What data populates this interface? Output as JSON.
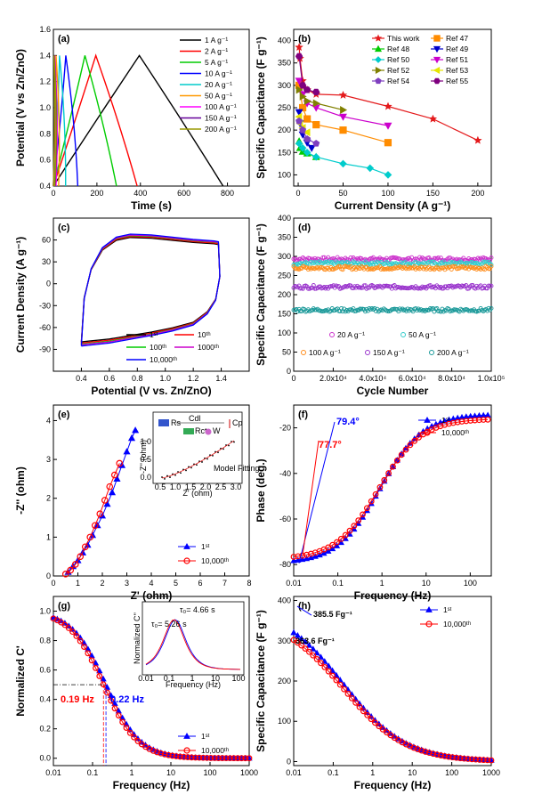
{
  "chart_data": [
    {
      "id": "a",
      "type": "line",
      "panel_label": "(a)",
      "xlabel": "Time (s)",
      "ylabel": "Potential (V vs Zn/ZnO)",
      "xlim": [
        0,
        900
      ],
      "ylim": [
        0.4,
        1.6
      ],
      "xticks": [
        "0",
        "200",
        "400",
        "600",
        "800"
      ],
      "yticks": [
        "0.4",
        "0.6",
        "0.8",
        "1.0",
        "1.2",
        "1.4",
        "1.6"
      ],
      "legend_position": "top-right",
      "series": [
        {
          "name": "1 A g⁻¹",
          "color": "#000000",
          "x": [
            0,
            395,
            780
          ],
          "y": [
            0.4,
            1.4,
            0.4
          ]
        },
        {
          "name": "2 A g⁻¹",
          "color": "#ff0000",
          "x": [
            0,
            195,
            385
          ],
          "y": [
            0.4,
            1.4,
            0.4
          ]
        },
        {
          "name": "5 A g⁻¹",
          "color": "#00cc00",
          "x": [
            0,
            145,
            290
          ],
          "y": [
            0.4,
            1.4,
            0.4
          ]
        },
        {
          "name": "10 A g⁻¹",
          "color": "#0000ff",
          "x": [
            0,
            57,
            112
          ],
          "y": [
            0.4,
            1.4,
            0.4
          ]
        },
        {
          "name": "20 A g⁻¹",
          "color": "#00cccc",
          "x": [
            0,
            28,
            56
          ],
          "y": [
            0.4,
            1.4,
            0.4
          ]
        },
        {
          "name": "50 A g⁻¹",
          "color": "#ff9900",
          "x": [
            0,
            12,
            24
          ],
          "y": [
            0.4,
            1.4,
            0.4
          ]
        },
        {
          "name": "100 A g⁻¹",
          "color": "#ff00ff",
          "x": [
            0,
            6,
            12
          ],
          "y": [
            0.4,
            1.4,
            0.4
          ]
        },
        {
          "name": "150 A g⁻¹",
          "color": "#660099",
          "x": [
            0,
            4,
            8
          ],
          "y": [
            0.4,
            1.4,
            0.4
          ]
        },
        {
          "name": "200 A g⁻¹",
          "color": "#999900",
          "x": [
            0,
            3,
            6
          ],
          "y": [
            0.4,
            1.4,
            0.4
          ]
        }
      ]
    },
    {
      "id": "b",
      "type": "line",
      "panel_label": "(b)",
      "xlabel": "Current Density (A g⁻¹)",
      "ylabel": "Specific Capacitance (F g⁻¹)",
      "xlim": [
        -5,
        215
      ],
      "ylim": [
        75,
        425
      ],
      "xticks": [
        "0",
        "50",
        "100",
        "150",
        "200"
      ],
      "yticks": [
        "100",
        "150",
        "200",
        "250",
        "300",
        "350",
        "400"
      ],
      "legend_position": "top-right",
      "series": [
        {
          "name": "This work",
          "color": "#e41a1c",
          "marker": "star",
          "x": [
            1,
            2,
            5,
            10,
            20,
            50,
            100,
            150,
            200
          ],
          "y": [
            385,
            360,
            310,
            290,
            280,
            278,
            253,
            225,
            177
          ]
        },
        {
          "name": "Ref 47",
          "color": "#ff8c00",
          "marker": "square",
          "x": [
            1,
            5,
            10,
            20,
            50,
            100
          ],
          "y": [
            300,
            250,
            225,
            212,
            200,
            172
          ]
        },
        {
          "name": "Ref 48",
          "color": "#00cc00",
          "marker": "triangle",
          "x": [
            1,
            2,
            5,
            10,
            20
          ],
          "y": [
            175,
            160,
            152,
            148,
            140
          ]
        },
        {
          "name": "Ref 49",
          "color": "#0000cc",
          "marker": "tri-down",
          "x": [
            1,
            2,
            5,
            10,
            15
          ],
          "y": [
            240,
            215,
            190,
            172,
            160
          ]
        },
        {
          "name": "Ref 50",
          "color": "#00cccc",
          "marker": "diamond",
          "x": [
            1,
            5,
            10,
            20,
            50,
            80,
            100
          ],
          "y": [
            170,
            160,
            150,
            140,
            125,
            115,
            100
          ]
        },
        {
          "name": "Ref 51",
          "color": "#cc00cc",
          "marker": "tri-down",
          "x": [
            1,
            5,
            10,
            20,
            50,
            100
          ],
          "y": [
            310,
            280,
            260,
            250,
            230,
            210
          ]
        },
        {
          "name": "Ref 52",
          "color": "#808000",
          "marker": "tri-right",
          "x": [
            1,
            5,
            10,
            20,
            50
          ],
          "y": [
            290,
            275,
            265,
            260,
            245
          ]
        },
        {
          "name": "Ref 53",
          "color": "#e6e600",
          "marker": "tri-left",
          "x": [
            1,
            2,
            5,
            10
          ],
          "y": [
            230,
            215,
            205,
            195
          ]
        },
        {
          "name": "Ref 54",
          "color": "#7f3fbf",
          "marker": "pentagon",
          "x": [
            1,
            5,
            10,
            20
          ],
          "y": [
            220,
            200,
            180,
            170
          ]
        },
        {
          "name": "Ref 55",
          "color": "#7f007f",
          "marker": "hexagon",
          "x": [
            1,
            5,
            10,
            20
          ],
          "y": [
            365,
            300,
            290,
            285
          ]
        }
      ]
    },
    {
      "id": "c",
      "type": "line",
      "panel_label": "(c)",
      "xlabel": "Potential (V vs. Zn/ZnO)",
      "ylabel": "Current Density (A g⁻¹)",
      "xlim": [
        0.2,
        1.6
      ],
      "ylim": [
        -120,
        90
      ],
      "xticks": [
        "0.4",
        "0.6",
        "0.8",
        "1.0",
        "1.2",
        "1.4"
      ],
      "yticks": [
        "-90",
        "-60",
        "-30",
        "0",
        "30",
        "60"
      ],
      "legend_position": "bottom-right",
      "series": [
        {
          "name": "1ˢᵗ",
          "color": "#000000",
          "scale": 0.96
        },
        {
          "name": "10ᵗʰ",
          "color": "#ff0000",
          "scale": 0.98
        },
        {
          "name": "100ᵗʰ",
          "color": "#00cc00",
          "scale": 1.0
        },
        {
          "name": "1000ᵗʰ",
          "color": "#cc00cc",
          "scale": 1.01
        },
        {
          "name": "10,000ᵗʰ",
          "color": "#0000ff",
          "scale": 1.03
        }
      ]
    },
    {
      "id": "d",
      "type": "scatter",
      "panel_label": "(d)",
      "xlabel": "Cycle Number",
      "ylabel": "Specific Capacitance (F g⁻¹)",
      "xlim": [
        0,
        100000
      ],
      "ylim": [
        0,
        400
      ],
      "xticks": [
        "0",
        "2.0x10⁴",
        "4.0x10⁴",
        "6.0x10⁴",
        "8.0x10⁴",
        "1.0x10⁵"
      ],
      "yticks": [
        "0",
        "50",
        "100",
        "150",
        "200",
        "250",
        "300",
        "350",
        "400"
      ],
      "legend_position": "bottom",
      "series": [
        {
          "name": "20 A g⁻¹",
          "color": "#cc33cc",
          "y": 293
        },
        {
          "name": "50 A g⁻¹",
          "color": "#33cccc",
          "y": 282
        },
        {
          "name": "100 A g⁻¹",
          "color": "#ff8c1a",
          "y": 270
        },
        {
          "name": "150 A g⁻¹",
          "color": "#9933cc",
          "y": 220
        },
        {
          "name": "200 A g⁻¹",
          "color": "#1a9999",
          "y": 160
        }
      ]
    },
    {
      "id": "e",
      "type": "scatter",
      "panel_label": "(e)",
      "xlabel": "Z' (ohm)",
      "ylabel": "-Z'' (ohm)",
      "xlim": [
        0,
        8
      ],
      "ylim": [
        0,
        4.4
      ],
      "xticks": [
        "0",
        "1",
        "2",
        "3",
        "4",
        "5",
        "6",
        "7",
        "8"
      ],
      "yticks": [
        "0",
        "1",
        "2",
        "3",
        "4"
      ],
      "legend_position": "bottom-right",
      "series": [
        {
          "name": "1ˢᵗ",
          "color": "#0000ff",
          "marker": "triangle",
          "x": [
            0.6,
            0.8,
            1.0,
            1.2,
            1.4,
            1.6,
            1.8,
            2.0,
            2.2,
            2.4,
            2.6,
            2.8,
            3.0,
            3.2,
            3.35
          ],
          "y": [
            0.1,
            0.25,
            0.4,
            0.6,
            0.8,
            1.05,
            1.3,
            1.55,
            1.85,
            2.15,
            2.5,
            2.85,
            3.2,
            3.55,
            3.75
          ]
        },
        {
          "name": "10,000ᵗʰ",
          "color": "#ff0000",
          "marker": "circle",
          "x": [
            0.5,
            0.7,
            0.9,
            1.1,
            1.3,
            1.5,
            1.7,
            1.9,
            2.1,
            2.3,
            2.5,
            2.7
          ],
          "y": [
            0.05,
            0.15,
            0.3,
            0.5,
            0.75,
            1.0,
            1.3,
            1.6,
            1.95,
            2.3,
            2.6,
            2.9
          ]
        }
      ],
      "inset": {
        "xlabel": "Z' (ohm)",
        "ylabel": "-Z'' (ohm)",
        "xticks": [
          "0.5",
          "1.0",
          "1.5",
          "2.0",
          "2.5",
          "3.0"
        ],
        "yticks": [
          "0.0",
          "0.5",
          "1.0"
        ],
        "circuit": [
          "Rs",
          "Cdl",
          "Rct",
          "W",
          "Cp"
        ],
        "legend": "Model Fitting"
      }
    },
    {
      "id": "f",
      "type": "scatter",
      "panel_label": "(f)",
      "xlabel": "Frequency (Hz)",
      "ylabel": "Phase (deg.)",
      "xscale": "log",
      "xlim": [
        0.01,
        300
      ],
      "ylim": [
        -85,
        -10
      ],
      "xticks": [
        "0.01",
        "0.1",
        "1",
        "10",
        "100"
      ],
      "yticks": [
        "-80",
        "-60",
        "-40",
        "-20"
      ],
      "legend_position": "top-right",
      "annotations": [
        {
          "text": "79.4°",
          "color": "#0000ff"
        },
        {
          "text": "77.7°",
          "color": "#ff0000"
        }
      ],
      "series": [
        {
          "name": "1ˢᵗ",
          "color": "#0000ff",
          "marker": "triangle",
          "start": -79.4,
          "end": -14,
          "mid": -42,
          "fc": 0.9
        },
        {
          "name": "10,000ᵗʰ",
          "color": "#ff0000",
          "marker": "circle",
          "start": -77.7,
          "end": -16,
          "mid": -41,
          "fc": 0.85
        }
      ]
    },
    {
      "id": "g",
      "type": "scatter",
      "panel_label": "(g)",
      "xlabel": "Frequency (Hz)",
      "ylabel": "Normalized C'",
      "xscale": "log",
      "xlim": [
        0.01,
        1000
      ],
      "ylim": [
        -0.05,
        1.1
      ],
      "xticks": [
        "0.01",
        "0.1",
        "1",
        "10",
        "100",
        "1000"
      ],
      "yticks": [
        "0.0",
        "0.2",
        "0.4",
        "0.6",
        "0.8",
        "1.0"
      ],
      "legend_position": "bottom-right",
      "annotations": [
        {
          "text": "0.22 Hz",
          "color": "#0000ff"
        },
        {
          "text": "0.19 Hz",
          "color": "#ff0000"
        }
      ],
      "series": [
        {
          "name": "1ˢᵗ",
          "color": "#0000ff",
          "marker": "triangle",
          "f0": 0.22
        },
        {
          "name": "10,000ᵗʰ",
          "color": "#ff0000",
          "marker": "circle",
          "f0": 0.19
        }
      ],
      "inset": {
        "xlabel": "Frequency (Hz)",
        "ylabel": "Normalized C''",
        "xticks": [
          "0.01",
          "0.1",
          "1",
          "10",
          "100"
        ],
        "ann_blue": "τ₀= 4.66 s",
        "ann_red": "τ₀= 5.26 s"
      }
    },
    {
      "id": "h",
      "type": "scatter",
      "panel_label": "(h)",
      "xlabel": "Frequency (Hz)",
      "ylabel": "Specific Capacitance (F g⁻¹)",
      "xscale": "log",
      "xlim": [
        0.01,
        1000
      ],
      "ylim": [
        -10,
        410
      ],
      "xticks": [
        "0.01",
        "0.1",
        "1",
        "10",
        "100",
        "1000"
      ],
      "yticks": [
        "0",
        "100",
        "200",
        "300",
        "400"
      ],
      "legend_position": "top-right",
      "annotations": [
        {
          "text": "385.5 Fg⁻¹",
          "color": "#0000ff"
        },
        {
          "text": "363.6 Fg⁻¹",
          "color": "#ff0000"
        }
      ],
      "series": [
        {
          "name": "1ˢᵗ",
          "color": "#0000ff",
          "marker": "triangle",
          "c0": 385.5
        },
        {
          "name": "10,000ᵗʰ",
          "color": "#ff0000",
          "marker": "circle",
          "c0": 363.6
        }
      ]
    }
  ]
}
